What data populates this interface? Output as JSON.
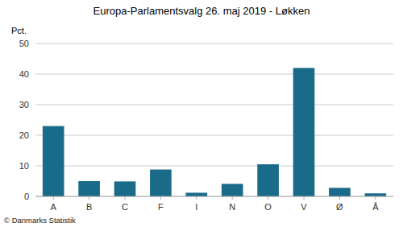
{
  "chart_data": {
    "type": "bar",
    "title": "Europa-Parlamentsvalg 26. maj 2019 - Løkken",
    "ylabel": "Pct.",
    "annotations": [
      "© Danmarks Statistik"
    ],
    "categories": [
      "A",
      "B",
      "C",
      "F",
      "I",
      "N",
      "O",
      "V",
      "Ø",
      "Å"
    ],
    "values": [
      23.0,
      5.0,
      4.9,
      8.8,
      1.2,
      4.1,
      10.5,
      42.0,
      2.8,
      1.0
    ],
    "color": "#1a6b8a",
    "ylim": [
      0,
      50
    ],
    "yticks": [
      0,
      10,
      20,
      30,
      40,
      50
    ],
    "grid": true
  }
}
